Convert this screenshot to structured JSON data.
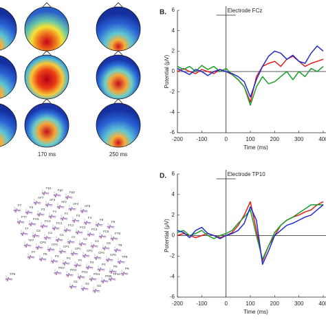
{
  "topo_labels": [
    "170 ms",
    "250 ms"
  ],
  "electrodes": [
    "Fp1",
    "Fpz",
    "Fp2",
    "AF7",
    "AF3",
    "AFz",
    "AF4",
    "AF8",
    "F7",
    "F5",
    "F3",
    "F1",
    "Fz",
    "F2",
    "F4",
    "F6",
    "F8",
    "FT7",
    "FC5",
    "FC3",
    "FC1",
    "FCz",
    "FC2",
    "FC4",
    "FC6",
    "FT8",
    "T7",
    "C5",
    "C3",
    "C1",
    "Cz",
    "C2",
    "C4",
    "C6",
    "T8",
    "TP7",
    "CP5",
    "CP3",
    "CP1",
    "CPz",
    "CP2",
    "CP4",
    "CP6",
    "TP8",
    "P7",
    "P5",
    "P3",
    "P1",
    "Pz",
    "P2",
    "P4",
    "P6",
    "P8",
    "PO7",
    "PO3",
    "POz",
    "PO4",
    "PO8",
    "O1",
    "Oz",
    "O2",
    "TP9",
    "TP10"
  ],
  "chart_data": [
    {
      "type": "line",
      "panel": "B.",
      "title": "Electrode FCz",
      "xlabel": "Time (ms)",
      "ylabel": "Potential (μV)",
      "x": [
        -200,
        -175,
        -150,
        -125,
        -100,
        -75,
        -50,
        -25,
        0,
        25,
        50,
        75,
        100,
        125,
        150,
        175,
        200,
        225,
        250,
        275,
        300,
        325,
        350,
        375,
        400
      ],
      "xlim": [
        -200,
        400
      ],
      "xticks": [
        -200,
        -100,
        0,
        100,
        200,
        300,
        400
      ],
      "ylim": [
        -6,
        6
      ],
      "yticks": [
        -6,
        -4,
        -2,
        0,
        2,
        4,
        6
      ],
      "series": [
        {
          "color": "#e31a1c",
          "values": [
            0,
            0.3,
            0,
            -0.2,
            0.2,
            0,
            -0.2,
            0.2,
            0,
            -0.3,
            -0.8,
            -1.5,
            -3,
            -0.5,
            0.5,
            0.8,
            1,
            0.5,
            1.2,
            1.5,
            1,
            0.5,
            0.8,
            1,
            1.2
          ]
        },
        {
          "color": "#1a9e2a",
          "values": [
            0.5,
            0.2,
            0.5,
            0,
            0.6,
            0.2,
            0.5,
            0,
            0.3,
            -0.3,
            -0.8,
            -1.5,
            -3.3,
            -1.5,
            -0.5,
            -1.2,
            -1,
            -0.5,
            0,
            -0.8,
            0,
            -0.5,
            0.3,
            0,
            0.5
          ]
        },
        {
          "color": "#1f2ad0",
          "values": [
            0.3,
            0,
            -0.3,
            0.2,
            0,
            -0.4,
            0,
            0.2,
            0,
            -0.2,
            -0.5,
            -1,
            -2.5,
            -0.8,
            0.5,
            1.5,
            2,
            1.8,
            1.2,
            1.6,
            1,
            0.8,
            1.8,
            2.5,
            2
          ]
        }
      ]
    },
    {
      "type": "line",
      "panel": "D.",
      "title": "Electrode TP10",
      "xlabel": "Time (ms)",
      "ylabel": "Potential (μV)",
      "x": [
        -200,
        -175,
        -150,
        -125,
        -100,
        -75,
        -50,
        -25,
        0,
        25,
        50,
        75,
        100,
        125,
        150,
        175,
        200,
        225,
        250,
        275,
        300,
        325,
        350,
        375,
        400
      ],
      "xlim": [
        -200,
        400
      ],
      "xticks": [
        -200,
        -100,
        0,
        100,
        200,
        300,
        400
      ],
      "ylim": [
        -6,
        6
      ],
      "yticks": [
        -6,
        -4,
        -2,
        0,
        2,
        4,
        6
      ],
      "series": [
        {
          "color": "#e31a1c",
          "values": [
            0,
            0.2,
            0,
            -0.2,
            0,
            0.2,
            0,
            -0.2,
            0,
            0.3,
            1,
            2,
            3.3,
            0.5,
            -2.5,
            -1,
            0,
            1,
            1.5,
            1.8,
            2,
            2.3,
            2.5,
            3,
            3.3
          ]
        },
        {
          "color": "#1a9e2a",
          "values": [
            0.3,
            0.5,
            0,
            0.2,
            0.5,
            0,
            -0.3,
            0,
            0.2,
            0.5,
            1.2,
            1.8,
            2.5,
            0,
            -2.3,
            -1,
            0.3,
            1,
            1.5,
            1.8,
            2.2,
            2.6,
            3,
            3,
            3
          ]
        },
        {
          "color": "#1f2ad0",
          "values": [
            0.5,
            0.3,
            -0.2,
            0.5,
            0.8,
            0.2,
            0,
            -0.3,
            0,
            0.2,
            0.5,
            1.2,
            2.8,
            1.5,
            -2.8,
            -1.5,
            0,
            0.5,
            1,
            1.2,
            1.5,
            1.8,
            2,
            2.5,
            3
          ]
        }
      ]
    }
  ]
}
